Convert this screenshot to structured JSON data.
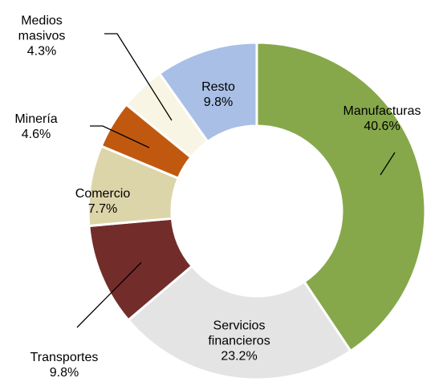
{
  "chart_data": {
    "type": "donut",
    "categories": [
      "Manufacturas",
      "Servicios financieros",
      "Transportes",
      "Comercio",
      "Minería",
      "Medios masivos",
      "Resto"
    ],
    "values": [
      40.6,
      23.2,
      9.8,
      7.7,
      4.6,
      4.3,
      9.8
    ],
    "value_labels": [
      "40.6%",
      "23.2%",
      "9.8%",
      "7.7%",
      "4.6%",
      "4.3%",
      "9.8%"
    ],
    "colors": [
      "#86a84a",
      "#e4e4e4",
      "#722d2b",
      "#ddd5aa",
      "#c0590f",
      "#f8f5e4",
      "#a9bfe6"
    ]
  }
}
